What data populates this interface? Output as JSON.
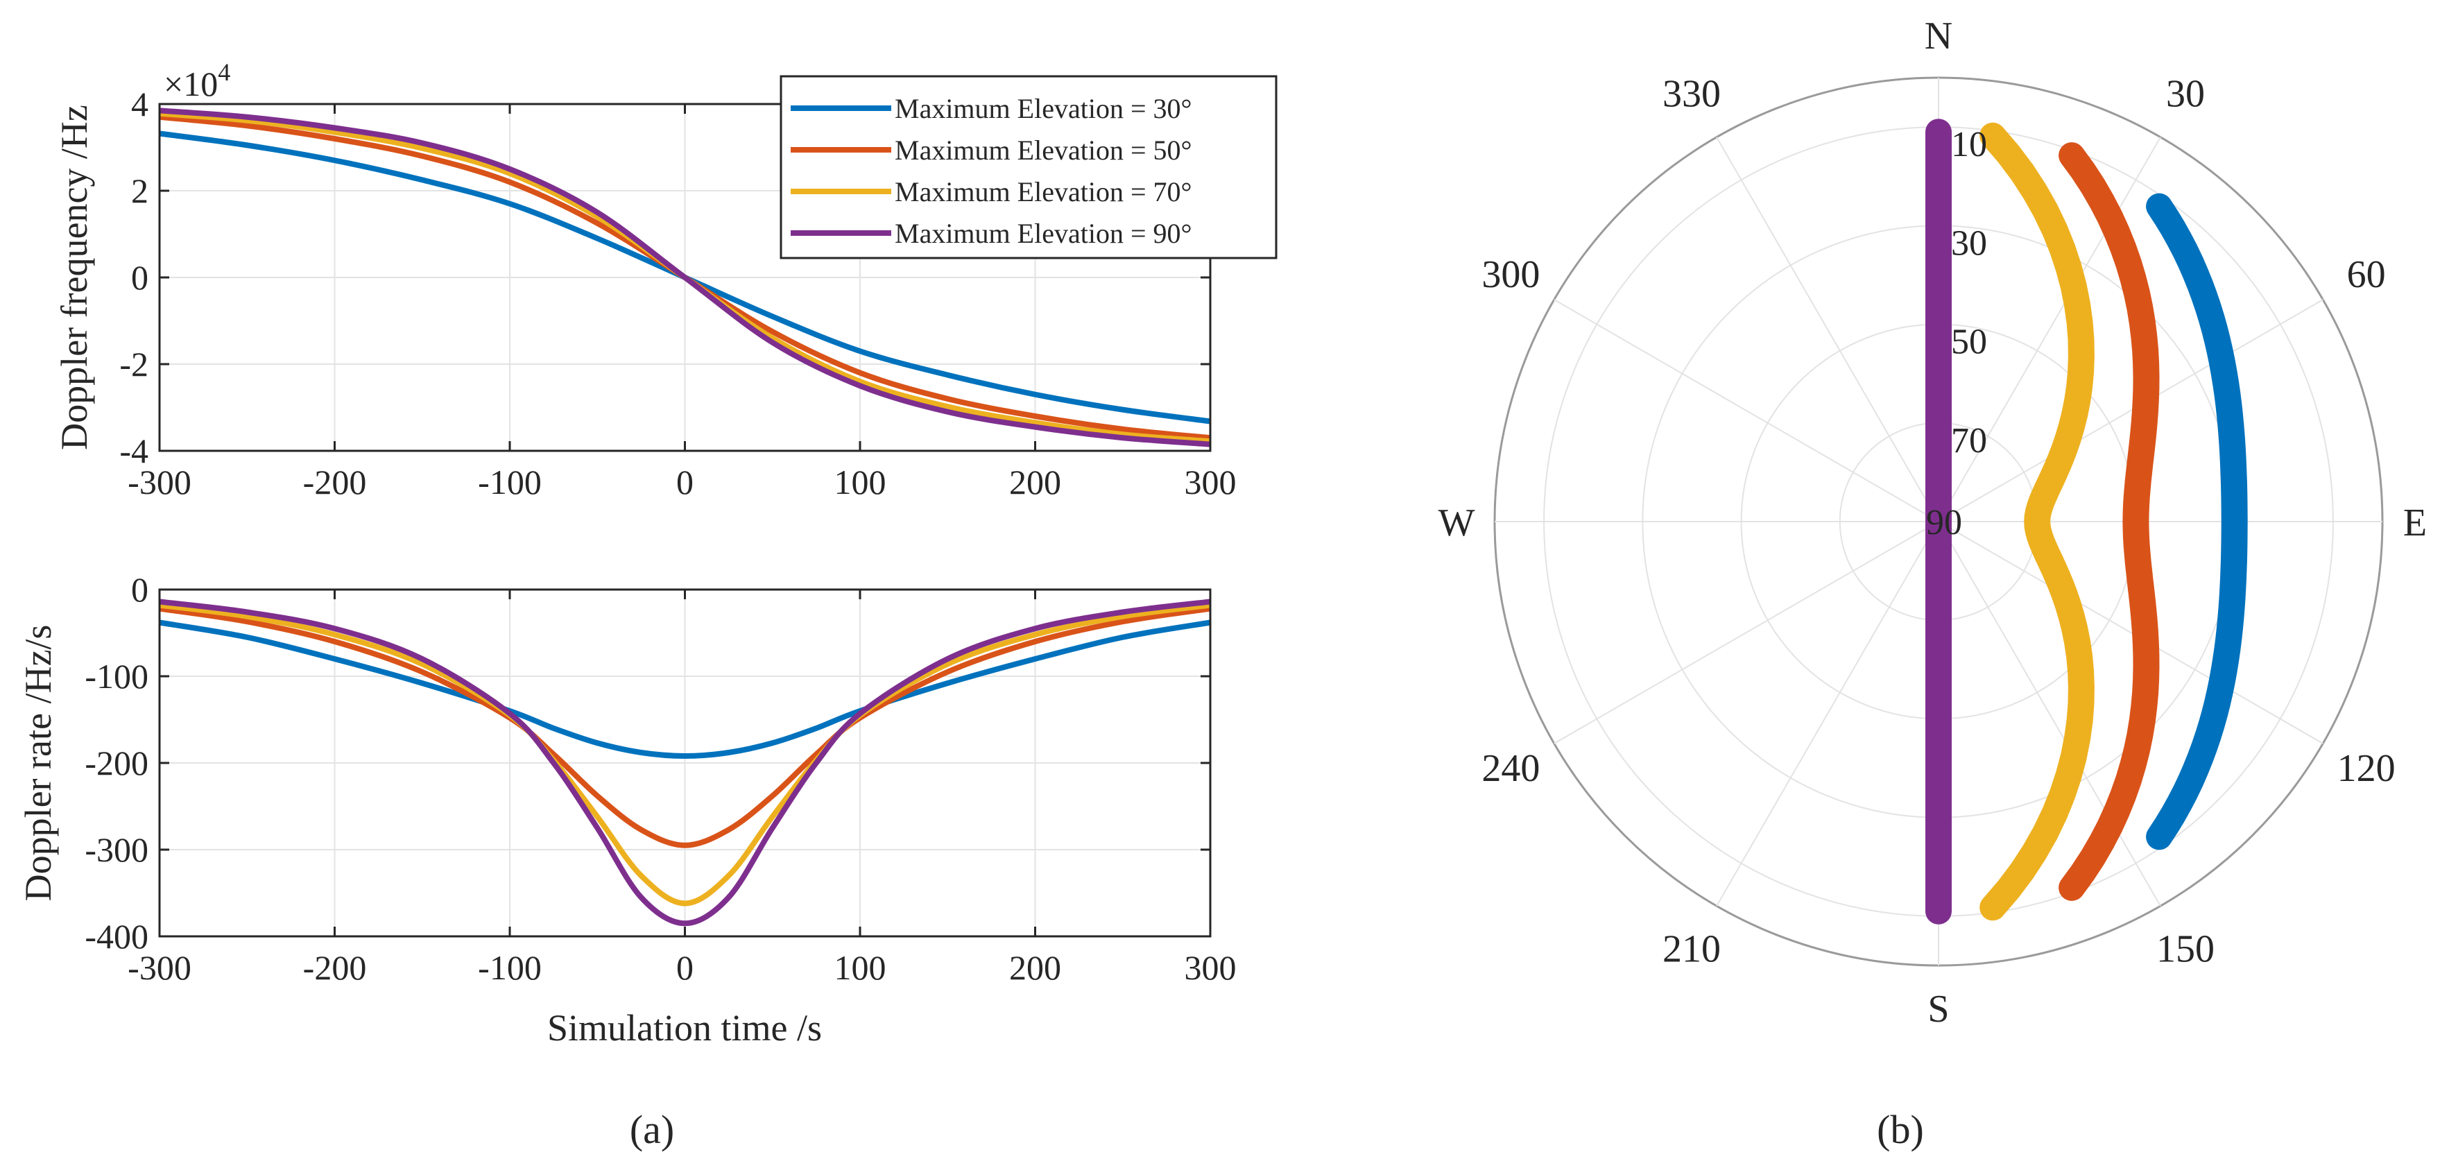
{
  "panel_labels": {
    "a": "(a)",
    "b": "(b)"
  },
  "colors": {
    "blue": "#0072BD",
    "orange": "#D95319",
    "yellow": "#EDB120",
    "purple": "#7E2F8E",
    "grid": "#E3E3E3",
    "axis": "#262626"
  },
  "chart_data": [
    {
      "type": "line",
      "id": "doppler-frequency",
      "title": "",
      "xlabel": "",
      "ylabel": "Doppler frequency /Hz",
      "exponent_label": "×10",
      "exponent_power": "4",
      "xlim": [
        -300,
        300
      ],
      "ylim": [
        -4,
        4
      ],
      "xticks": [
        -300,
        -200,
        -100,
        0,
        100,
        200,
        300
      ],
      "xtick_labels": [
        "-300",
        "-200",
        "-100",
        "0",
        "100",
        "200",
        "300"
      ],
      "yticks": [
        -4,
        -2,
        0,
        2,
        4
      ],
      "ytick_labels": [
        "-4",
        "-2",
        "0",
        "2",
        "4"
      ],
      "grid": true,
      "legend": "top-right",
      "x": [
        -300,
        -250,
        -200,
        -150,
        -100,
        -50,
        0,
        50,
        100,
        150,
        200,
        250,
        300
      ],
      "series": [
        {
          "name": "Maximum Elevation = 30°",
          "color": "#0072BD",
          "values": [
            3.32,
            3.05,
            2.7,
            2.25,
            1.7,
            0.9,
            0,
            -0.9,
            -1.7,
            -2.25,
            -2.7,
            -3.05,
            -3.32
          ]
        },
        {
          "name": "Maximum Elevation = 50°",
          "color": "#D95319",
          "values": [
            3.7,
            3.5,
            3.2,
            2.8,
            2.2,
            1.25,
            0,
            -1.25,
            -2.2,
            -2.8,
            -3.2,
            -3.5,
            -3.7
          ]
        },
        {
          "name": "Maximum Elevation = 70°",
          "color": "#EDB120",
          "values": [
            3.78,
            3.62,
            3.35,
            2.98,
            2.4,
            1.4,
            0,
            -1.4,
            -2.4,
            -2.98,
            -3.35,
            -3.62,
            -3.78
          ]
        },
        {
          "name": "Maximum Elevation = 90°",
          "color": "#7E2F8E",
          "values": [
            3.85,
            3.7,
            3.45,
            3.1,
            2.5,
            1.5,
            0,
            -1.5,
            -2.5,
            -3.1,
            -3.45,
            -3.7,
            -3.85
          ]
        }
      ]
    },
    {
      "type": "line",
      "id": "doppler-rate",
      "title": "",
      "xlabel": "Simulation time /s",
      "ylabel": "Doppler rate /Hz/s",
      "xlim": [
        -300,
        300
      ],
      "ylim": [
        -400,
        0
      ],
      "xticks": [
        -300,
        -200,
        -100,
        0,
        100,
        200,
        300
      ],
      "xtick_labels": [
        "-300",
        "-200",
        "-100",
        "0",
        "100",
        "200",
        "300"
      ],
      "yticks": [
        -400,
        -300,
        -200,
        -100,
        0
      ],
      "ytick_labels": [
        "-400",
        "-300",
        "-200",
        "-100",
        "0"
      ],
      "grid": true,
      "x": [
        -300,
        -250,
        -200,
        -150,
        -100,
        -75,
        -50,
        -25,
        0,
        25,
        50,
        75,
        100,
        150,
        200,
        250,
        300
      ],
      "series": [
        {
          "name": "Maximum Elevation = 30°",
          "color": "#0072BD",
          "values": [
            -38,
            -55,
            -80,
            -108,
            -140,
            -160,
            -177,
            -188,
            -192,
            -188,
            -177,
            -160,
            -140,
            -108,
            -80,
            -55,
            -38
          ]
        },
        {
          "name": "Maximum Elevation = 50°",
          "color": "#D95319",
          "values": [
            -22,
            -37,
            -60,
            -95,
            -148,
            -190,
            -238,
            -277,
            -295,
            -277,
            -238,
            -190,
            -148,
            -95,
            -60,
            -37,
            -22
          ]
        },
        {
          "name": "Maximum Elevation = 70°",
          "color": "#EDB120",
          "values": [
            -18,
            -31,
            -52,
            -86,
            -145,
            -197,
            -262,
            -330,
            -362,
            -330,
            -262,
            -197,
            -145,
            -86,
            -52,
            -31,
            -18
          ]
        },
        {
          "name": "Maximum Elevation = 90°",
          "color": "#7E2F8E",
          "values": [
            -14,
            -26,
            -45,
            -80,
            -143,
            -200,
            -275,
            -355,
            -385,
            -355,
            -275,
            -200,
            -143,
            -80,
            -45,
            -26,
            -14
          ]
        }
      ]
    },
    {
      "type": "polar",
      "id": "sky-plot",
      "title": "",
      "compass_labels": {
        "n": "N",
        "e": "E",
        "s": "S",
        "w": "W"
      },
      "azimuth_labels": [
        "30",
        "60",
        "120",
        "150",
        "210",
        "240",
        "300",
        "330"
      ],
      "azimuth_angles": [
        30,
        60,
        120,
        150,
        210,
        240,
        300,
        330
      ],
      "elevation_labels": [
        "10",
        "30",
        "50",
        "70",
        "90"
      ],
      "elevation_values": [
        10,
        30,
        50,
        70,
        90
      ],
      "rlim_elevation": [
        0,
        90
      ],
      "series": [
        {
          "name": "Maximum Elevation = 30°",
          "color": "#0072BD",
          "max_elevation": 30,
          "start_azimuth": 35,
          "end_azimuth": 145,
          "start_elevation": 12,
          "end_elevation": 12
        },
        {
          "name": "Maximum Elevation = 50°",
          "color": "#D95319",
          "max_elevation": 50,
          "start_azimuth": 20,
          "end_azimuth": 160,
          "start_elevation": 11,
          "end_elevation": 11
        },
        {
          "name": "Maximum Elevation = 70°",
          "color": "#EDB120",
          "max_elevation": 70,
          "start_azimuth": 8,
          "end_azimuth": 172,
          "start_elevation": 11,
          "end_elevation": 11
        },
        {
          "name": "Maximum Elevation = 90°",
          "color": "#7E2F8E",
          "max_elevation": 90,
          "start_azimuth": 0,
          "end_azimuth": 180,
          "start_elevation": 11,
          "end_elevation": 11
        }
      ]
    }
  ]
}
